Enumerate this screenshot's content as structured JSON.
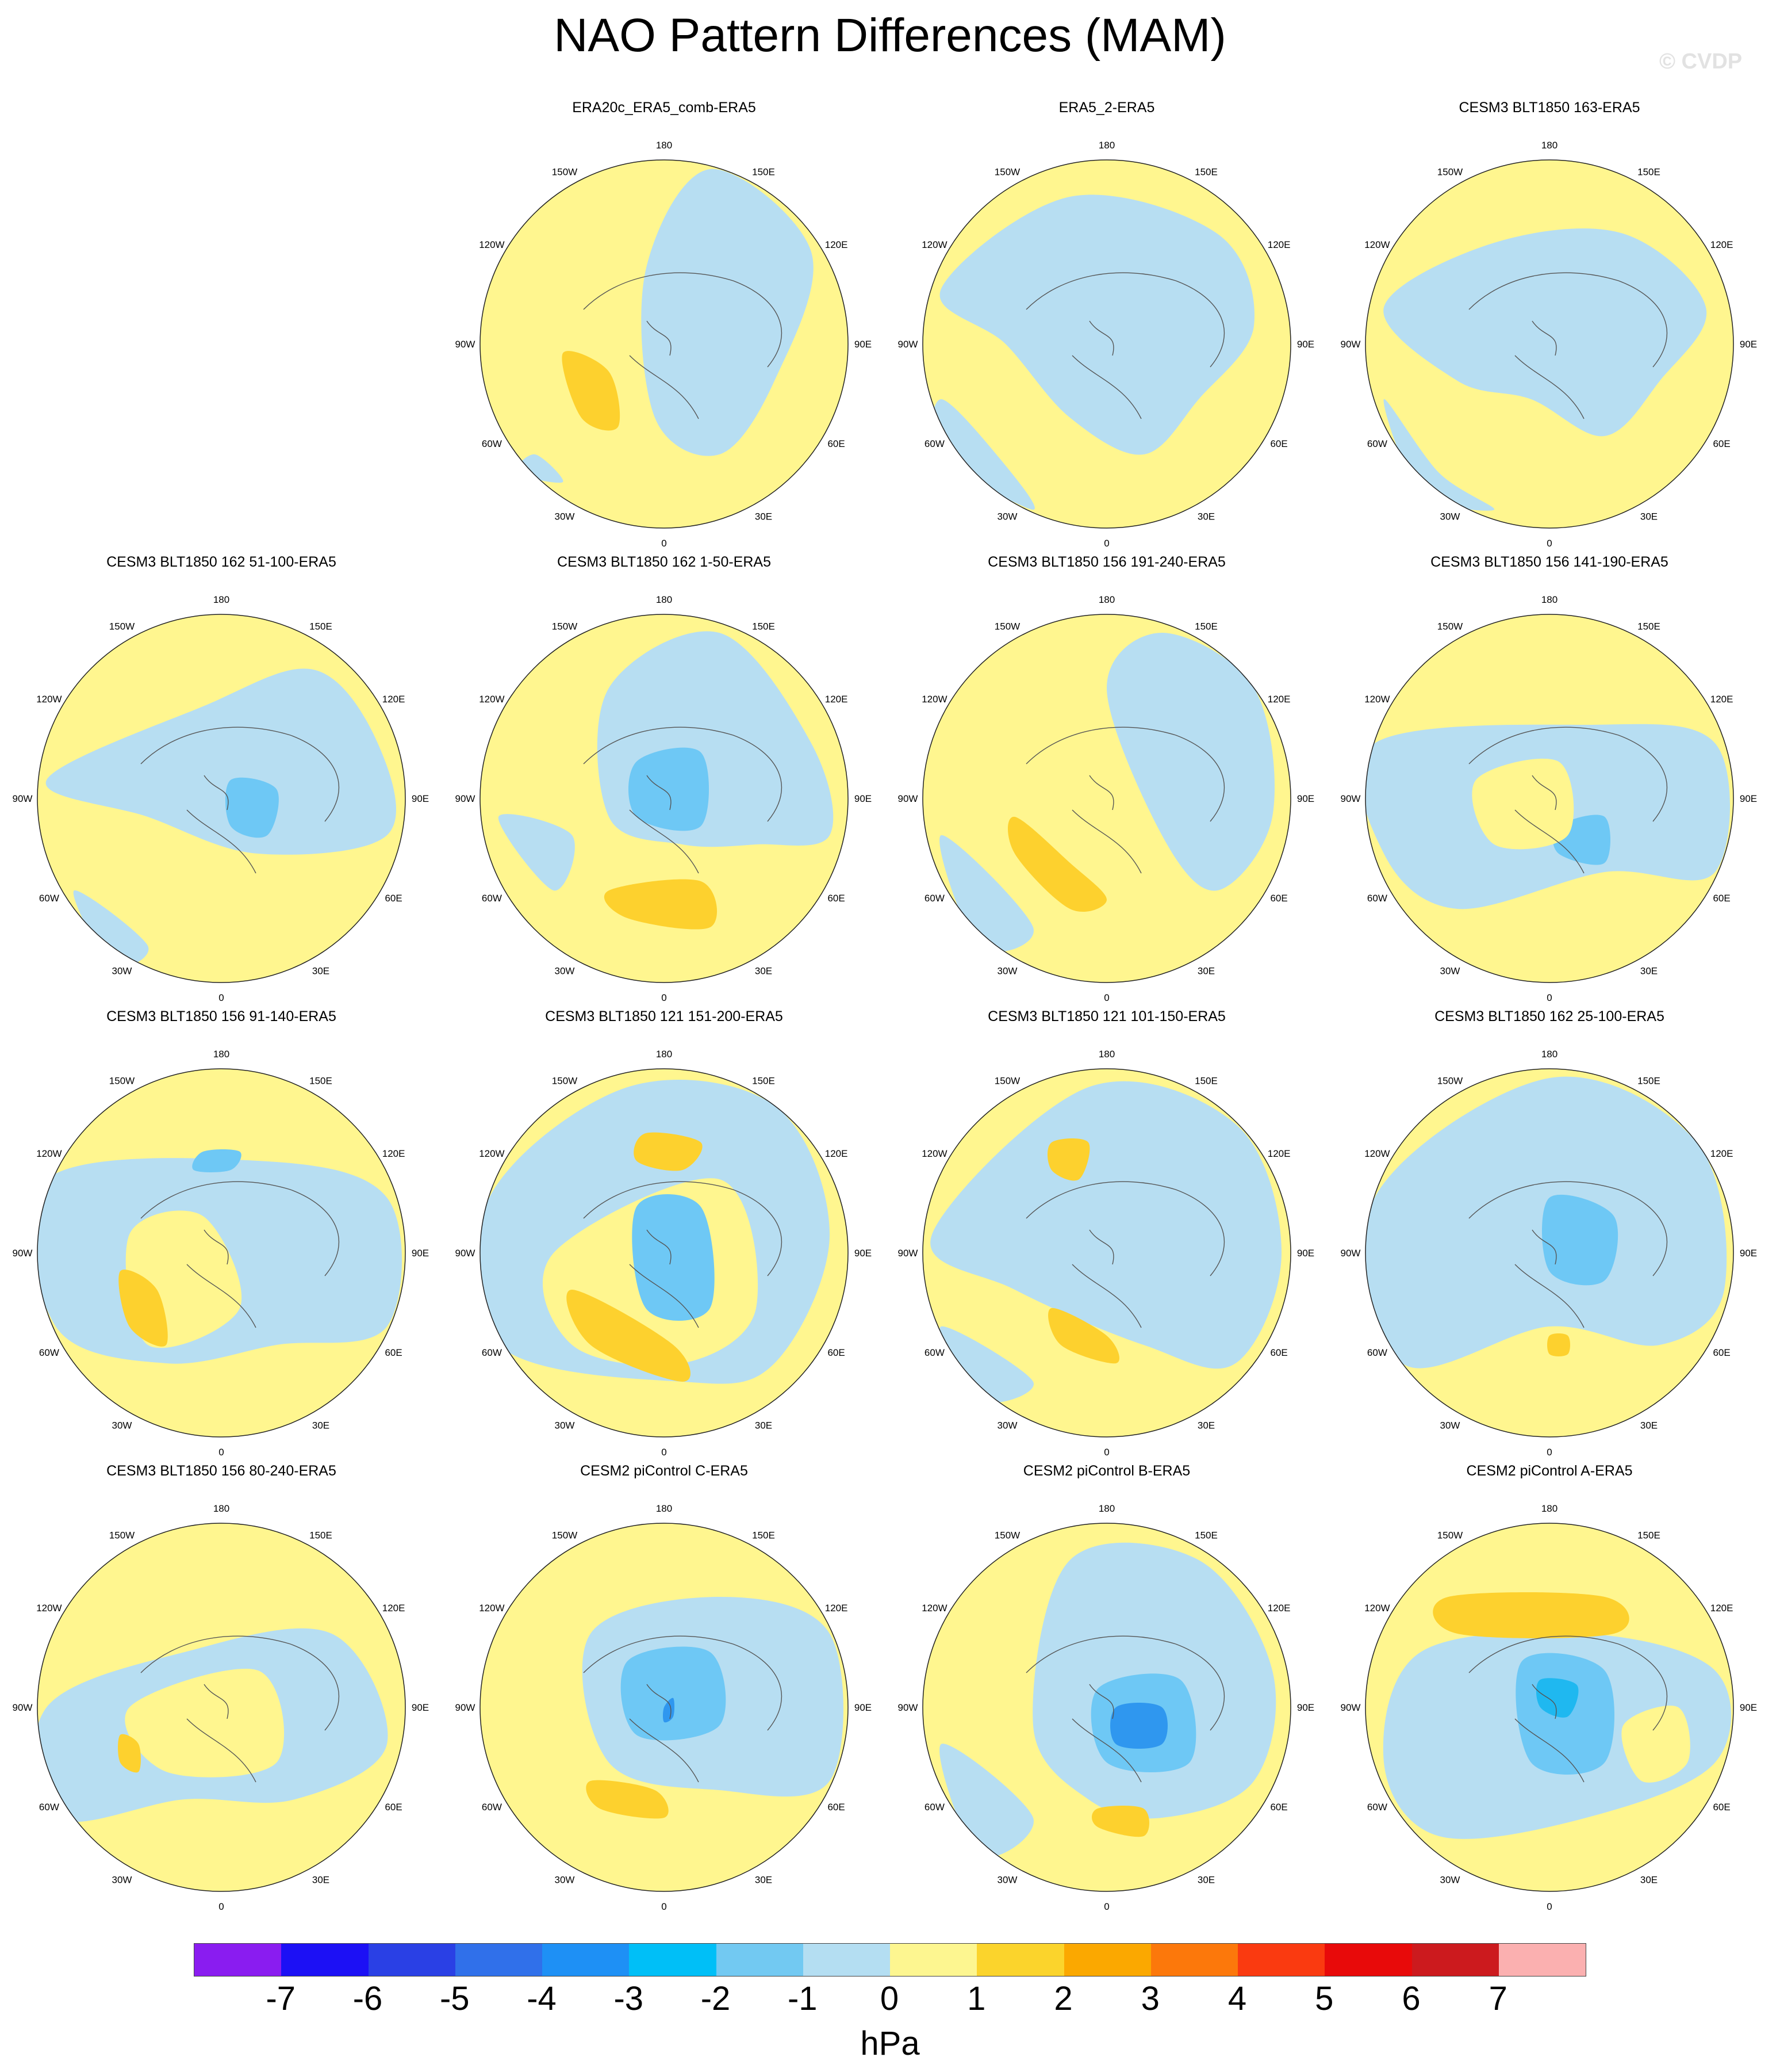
{
  "title": "NAO Pattern Differences (MAM)",
  "watermark": "© CVDP",
  "map_labels": {
    "top": "180",
    "bottom": "0",
    "left": "90W",
    "right": "90E",
    "upper_left_1": "150W",
    "upper_left_2": "120W",
    "lower_left_1": "60W",
    "lower_left_2": "30W",
    "upper_right_1": "150E",
    "upper_right_2": "120E",
    "lower_right_1": "60E",
    "lower_right_2": "30E"
  },
  "colors": {
    "ocean_neg1": "#b7def2",
    "pos1": "#fff68f",
    "pos2": "#fdd12e",
    "neg2": "#6ec8f5",
    "neg3": "#1fb8f0",
    "neg4": "#2f97ef"
  },
  "panels": [
    {
      "title": "ERA20c_ERA5_comb-ERA5",
      "variant": 0
    },
    {
      "title": "ERA5_2-ERA5",
      "variant": 1
    },
    {
      "title": "CESM3 BLT1850 163-ERA5",
      "variant": 2
    },
    {
      "title": "CESM3 BLT1850 162 51-100-ERA5",
      "variant": 3
    },
    {
      "title": "CESM3 BLT1850 162 1-50-ERA5",
      "variant": 4
    },
    {
      "title": "CESM3 BLT1850 156 191-240-ERA5",
      "variant": 5
    },
    {
      "title": "CESM3 BLT1850 156 141-190-ERA5",
      "variant": 6
    },
    {
      "title": "CESM3 BLT1850 156 91-140-ERA5",
      "variant": 7
    },
    {
      "title": "CESM3 BLT1850 121 151-200-ERA5",
      "variant": 8
    },
    {
      "title": "CESM3 BLT1850 121 101-150-ERA5",
      "variant": 9
    },
    {
      "title": "CESM3 BLT1850 162 25-100-ERA5",
      "variant": 10
    },
    {
      "title": "CESM3 BLT1850 156 80-240-ERA5",
      "variant": 11
    },
    {
      "title": "CESM2 piControl C-ERA5",
      "variant": 12
    },
    {
      "title": "CESM2 piControl B-ERA5",
      "variant": 13
    },
    {
      "title": "CESM2 piControl A-ERA5",
      "variant": 14
    }
  ],
  "colorbar": {
    "colors": [
      "#8a1cf0",
      "#1c10f5",
      "#2a40e5",
      "#3070ea",
      "#1e90f5",
      "#00bff7",
      "#72c9f2",
      "#b4def2",
      "#fdf690",
      "#fbd42c",
      "#fba800",
      "#fc780b",
      "#fa3a10",
      "#e80a0a",
      "#cc1a1e",
      "#fbb0b0"
    ],
    "ticks": [
      "-7",
      "-6",
      "-5",
      "-4",
      "-3",
      "-2",
      "-1",
      "0",
      "1",
      "2",
      "3",
      "4",
      "5",
      "6",
      "7"
    ],
    "units": "hPa"
  }
}
